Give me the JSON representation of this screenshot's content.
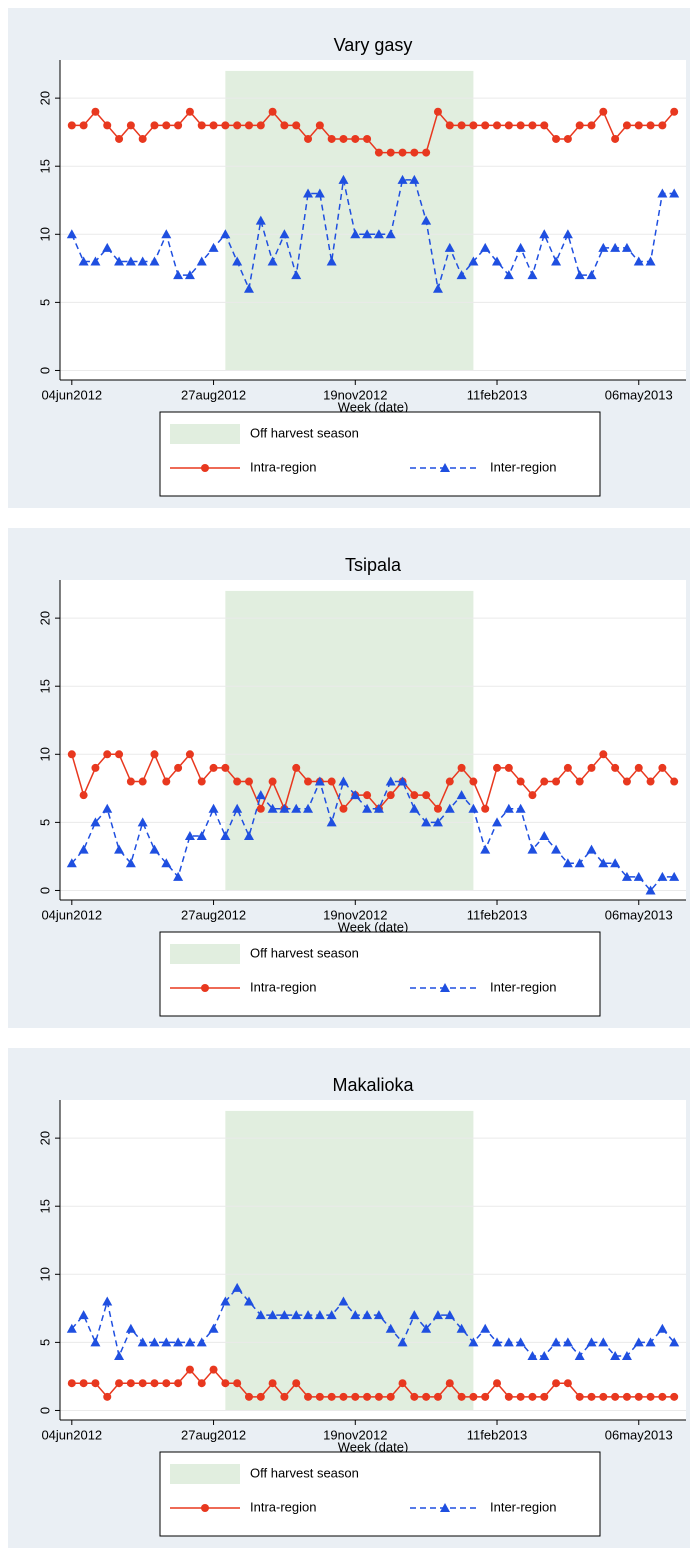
{
  "chart_data": [
    {
      "type": "line",
      "title": "Vary gasy",
      "x_label": "Week (date)",
      "x": [
        "2012-06-04",
        "2012-06-11",
        "2012-06-18",
        "2012-06-25",
        "2012-07-02",
        "2012-07-09",
        "2012-07-16",
        "2012-07-23",
        "2012-07-30",
        "2012-08-06",
        "2012-08-13",
        "2012-08-20",
        "2012-08-27",
        "2012-09-03",
        "2012-09-10",
        "2012-09-17",
        "2012-09-24",
        "2012-10-01",
        "2012-10-08",
        "2012-10-15",
        "2012-10-22",
        "2012-10-29",
        "2012-11-05",
        "2012-11-12",
        "2012-11-19",
        "2012-11-26",
        "2012-12-03",
        "2012-12-10",
        "2012-12-17",
        "2012-12-24",
        "2012-12-31",
        "2013-01-07",
        "2013-01-14",
        "2013-01-21",
        "2013-01-28",
        "2013-02-04",
        "2013-02-11",
        "2013-02-18",
        "2013-02-25",
        "2013-03-04",
        "2013-03-11",
        "2013-03-18",
        "2013-03-25",
        "2013-04-01",
        "2013-04-08",
        "2013-04-15",
        "2013-04-22",
        "2013-04-29",
        "2013-05-06",
        "2013-05-13",
        "2013-05-20",
        "2013-05-27"
      ],
      "xlim": [
        "2012-05-28",
        "2013-06-03"
      ],
      "xticks": [
        {
          "value": "2012-06-04",
          "label": "04jun2012"
        },
        {
          "value": "2012-08-27",
          "label": "27aug2012"
        },
        {
          "value": "2012-11-19",
          "label": "19nov2012"
        },
        {
          "value": "2013-02-11",
          "label": "11feb2013"
        },
        {
          "value": "2013-05-06",
          "label": "06may2013"
        }
      ],
      "ylim": [
        -0.7,
        22.8
      ],
      "yticks": [
        0,
        5,
        10,
        15,
        20
      ],
      "grid": true,
      "shade": {
        "name": "Off harvest season",
        "x": [
          "2012-09-03",
          "2013-01-28"
        ],
        "y": [
          0,
          22
        ],
        "color": "#e1eedf"
      },
      "series": [
        {
          "name": "Intra-region",
          "color": "#e8381f",
          "marker": "circle",
          "linestyle": "solid",
          "values": [
            18,
            18,
            19,
            18,
            17,
            18,
            17,
            18,
            18,
            18,
            19,
            18,
            18,
            18,
            18,
            18,
            18,
            19,
            18,
            18,
            17,
            18,
            17,
            17,
            17,
            17,
            16,
            16,
            16,
            16,
            16,
            19,
            18,
            18,
            18,
            18,
            18,
            18,
            18,
            18,
            18,
            17,
            17,
            18,
            18,
            19,
            17,
            18,
            18,
            18,
            18,
            19
          ]
        },
        {
          "name": "Inter-region",
          "color": "#1f4fe0",
          "marker": "triangle",
          "linestyle": "dashed",
          "values": [
            10,
            8,
            8,
            9,
            8,
            8,
            8,
            8,
            10,
            7,
            7,
            8,
            9,
            10,
            8,
            6,
            11,
            8,
            10,
            7,
            13,
            13,
            8,
            14,
            10,
            10,
            10,
            10,
            14,
            14,
            11,
            6,
            9,
            7,
            8,
            9,
            8,
            7,
            9,
            7,
            10,
            8,
            10,
            7,
            7,
            9,
            9,
            9,
            8,
            8,
            13,
            13
          ]
        }
      ]
    },
    {
      "type": "line",
      "title": "Tsipala",
      "x_label": "Week (date)",
      "x": [
        "2012-06-04",
        "2012-06-11",
        "2012-06-18",
        "2012-06-25",
        "2012-07-02",
        "2012-07-09",
        "2012-07-16",
        "2012-07-23",
        "2012-07-30",
        "2012-08-06",
        "2012-08-13",
        "2012-08-20",
        "2012-08-27",
        "2012-09-03",
        "2012-09-10",
        "2012-09-17",
        "2012-09-24",
        "2012-10-01",
        "2012-10-08",
        "2012-10-15",
        "2012-10-22",
        "2012-10-29",
        "2012-11-05",
        "2012-11-12",
        "2012-11-19",
        "2012-11-26",
        "2012-12-03",
        "2012-12-10",
        "2012-12-17",
        "2012-12-24",
        "2012-12-31",
        "2013-01-07",
        "2013-01-14",
        "2013-01-21",
        "2013-01-28",
        "2013-02-04",
        "2013-02-11",
        "2013-02-18",
        "2013-02-25",
        "2013-03-04",
        "2013-03-11",
        "2013-03-18",
        "2013-03-25",
        "2013-04-01",
        "2013-04-08",
        "2013-04-15",
        "2013-04-22",
        "2013-04-29",
        "2013-05-06",
        "2013-05-13",
        "2013-05-20",
        "2013-05-27"
      ],
      "xlim": [
        "2012-05-28",
        "2013-06-03"
      ],
      "xticks": [
        {
          "value": "2012-06-04",
          "label": "04jun2012"
        },
        {
          "value": "2012-08-27",
          "label": "27aug2012"
        },
        {
          "value": "2012-11-19",
          "label": "19nov2012"
        },
        {
          "value": "2013-02-11",
          "label": "11feb2013"
        },
        {
          "value": "2013-05-06",
          "label": "06may2013"
        }
      ],
      "ylim": [
        -0.7,
        22.8
      ],
      "yticks": [
        0,
        5,
        10,
        15,
        20
      ],
      "grid": true,
      "shade": {
        "name": "Off harvest season",
        "x": [
          "2012-09-03",
          "2013-01-28"
        ],
        "y": [
          0,
          22
        ],
        "color": "#e1eedf"
      },
      "series": [
        {
          "name": "Intra-region",
          "color": "#e8381f",
          "marker": "circle",
          "linestyle": "solid",
          "values": [
            10,
            7,
            9,
            10,
            10,
            8,
            8,
            10,
            8,
            9,
            10,
            8,
            9,
            9,
            8,
            8,
            6,
            8,
            6,
            9,
            8,
            8,
            8,
            6,
            7,
            7,
            6,
            7,
            8,
            7,
            7,
            6,
            8,
            9,
            8,
            6,
            9,
            9,
            8,
            7,
            8,
            8,
            9,
            8,
            9,
            10,
            9,
            8,
            9,
            8,
            9,
            8
          ]
        },
        {
          "name": "Inter-region",
          "color": "#1f4fe0",
          "marker": "triangle",
          "linestyle": "dashed",
          "values": [
            2,
            3,
            5,
            6,
            3,
            2,
            5,
            3,
            2,
            1,
            4,
            4,
            6,
            4,
            6,
            4,
            7,
            6,
            6,
            6,
            6,
            8,
            5,
            8,
            7,
            6,
            6,
            8,
            8,
            6,
            5,
            5,
            6,
            7,
            6,
            3,
            5,
            6,
            6,
            3,
            4,
            3,
            2,
            2,
            3,
            2,
            2,
            1,
            1,
            0,
            1,
            1
          ]
        }
      ]
    },
    {
      "type": "line",
      "title": "Makalioka",
      "x_label": "Week (date)",
      "x": [
        "2012-06-04",
        "2012-06-11",
        "2012-06-18",
        "2012-06-25",
        "2012-07-02",
        "2012-07-09",
        "2012-07-16",
        "2012-07-23",
        "2012-07-30",
        "2012-08-06",
        "2012-08-13",
        "2012-08-20",
        "2012-08-27",
        "2012-09-03",
        "2012-09-10",
        "2012-09-17",
        "2012-09-24",
        "2012-10-01",
        "2012-10-08",
        "2012-10-15",
        "2012-10-22",
        "2012-10-29",
        "2012-11-05",
        "2012-11-12",
        "2012-11-19",
        "2012-11-26",
        "2012-12-03",
        "2012-12-10",
        "2012-12-17",
        "2012-12-24",
        "2012-12-31",
        "2013-01-07",
        "2013-01-14",
        "2013-01-21",
        "2013-01-28",
        "2013-02-04",
        "2013-02-11",
        "2013-02-18",
        "2013-02-25",
        "2013-03-04",
        "2013-03-11",
        "2013-03-18",
        "2013-03-25",
        "2013-04-01",
        "2013-04-08",
        "2013-04-15",
        "2013-04-22",
        "2013-04-29",
        "2013-05-06",
        "2013-05-13",
        "2013-05-20",
        "2013-05-27"
      ],
      "xlim": [
        "2012-05-28",
        "2013-06-03"
      ],
      "xticks": [
        {
          "value": "2012-06-04",
          "label": "04jun2012"
        },
        {
          "value": "2012-08-27",
          "label": "27aug2012"
        },
        {
          "value": "2012-11-19",
          "label": "19nov2012"
        },
        {
          "value": "2013-02-11",
          "label": "11feb2013"
        },
        {
          "value": "2013-05-06",
          "label": "06may2013"
        }
      ],
      "ylim": [
        -0.7,
        22.8
      ],
      "yticks": [
        0,
        5,
        10,
        15,
        20
      ],
      "grid": true,
      "shade": {
        "name": "Off harvest season",
        "x": [
          "2012-09-03",
          "2013-01-28"
        ],
        "y": [
          0,
          22
        ],
        "color": "#e1eedf"
      },
      "series": [
        {
          "name": "Intra-region",
          "color": "#e8381f",
          "marker": "circle",
          "linestyle": "solid",
          "values": [
            2,
            2,
            2,
            1,
            2,
            2,
            2,
            2,
            2,
            2,
            3,
            2,
            3,
            2,
            2,
            1,
            1,
            2,
            1,
            2,
            1,
            1,
            1,
            1,
            1,
            1,
            1,
            1,
            2,
            1,
            1,
            1,
            2,
            1,
            1,
            1,
            2,
            1,
            1,
            1,
            1,
            2,
            2,
            1,
            1,
            1,
            1,
            1,
            1,
            1,
            1,
            1
          ]
        },
        {
          "name": "Inter-region",
          "color": "#1f4fe0",
          "marker": "triangle",
          "linestyle": "dashed",
          "values": [
            6,
            7,
            5,
            8,
            4,
            6,
            5,
            5,
            5,
            5,
            5,
            5,
            6,
            8,
            9,
            8,
            7,
            7,
            7,
            7,
            7,
            7,
            7,
            8,
            7,
            7,
            7,
            6,
            5,
            7,
            6,
            7,
            7,
            6,
            5,
            6,
            5,
            5,
            5,
            4,
            4,
            5,
            5,
            4,
            5,
            5,
            4,
            4,
            5,
            5,
            6,
            5
          ]
        }
      ]
    }
  ]
}
